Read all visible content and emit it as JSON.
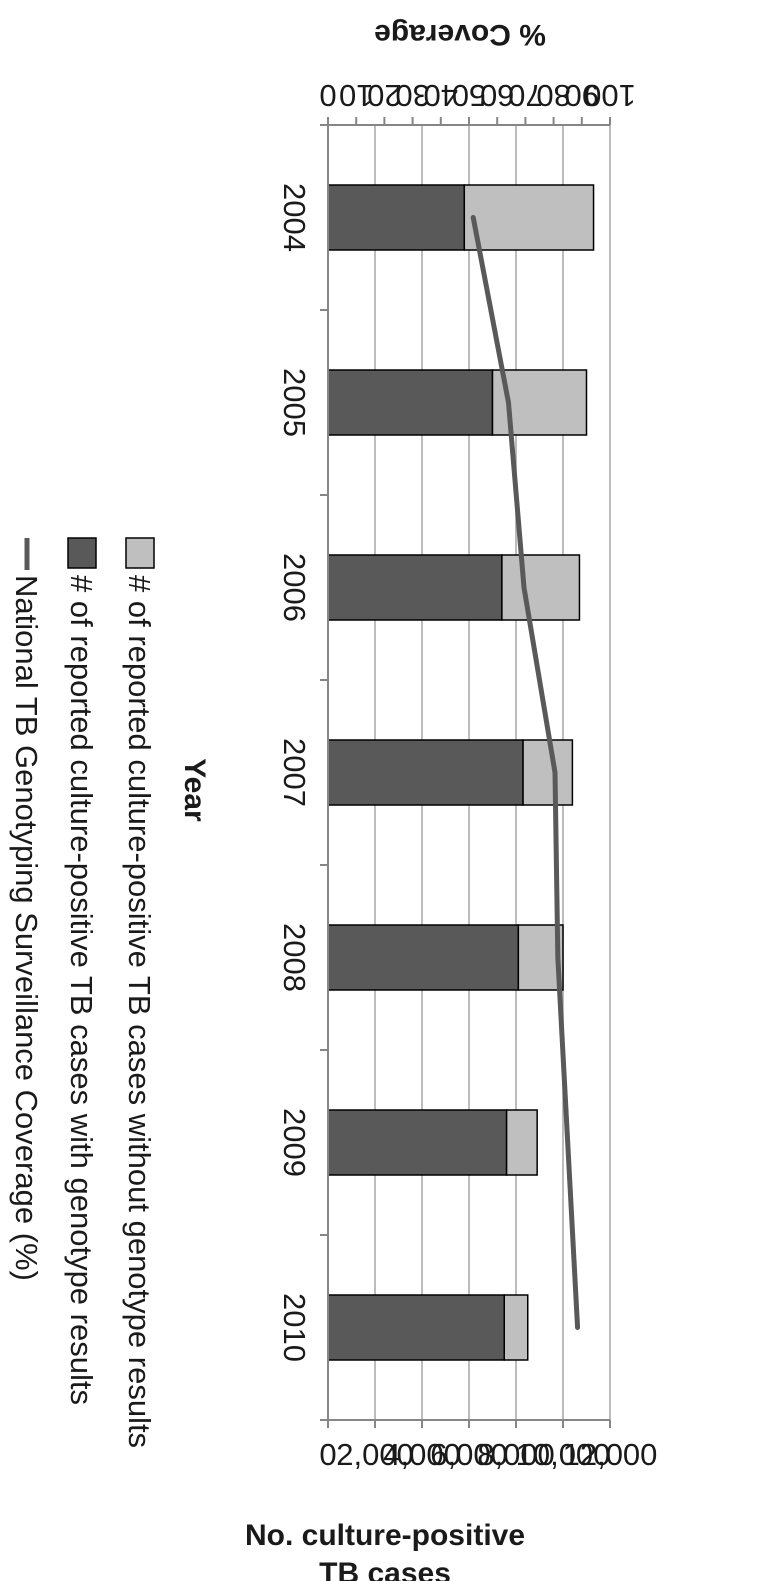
{
  "chart_data": {
    "type": "bar",
    "orientation": "rotated-90-clockwise",
    "categories": [
      "2004",
      "2005",
      "2006",
      "2007",
      "2008",
      "2009",
      "2010"
    ],
    "series": [
      {
        "name": "# of reported culture-positive TB cases with genotype results",
        "type": "bar",
        "stack": "cases",
        "axis": "left",
        "color": "#595959",
        "values": [
          5800,
          7000,
          7400,
          8300,
          8100,
          7600,
          7500
        ]
      },
      {
        "name": "# of reported culture-positive TB cases without genotype results",
        "type": "bar",
        "stack": "cases",
        "axis": "left",
        "color": "#bfbfbf",
        "values": [
          5500,
          4000,
          3300,
          2100,
          1900,
          1300,
          1000
        ]
      },
      {
        "name": "National TB Genotyping Surveillance Coverage (%)",
        "type": "line",
        "axis": "right",
        "color": "#595959",
        "values": [
          51.5,
          64,
          69.5,
          80.5,
          81.5,
          85,
          88.5
        ]
      }
    ],
    "xlabel": "Year",
    "ylabel_left": "No. culture-positive TB cases",
    "ylabel_right": "% Coverage",
    "ylim_left": [
      0,
      12000
    ],
    "ylim_right": [
      0,
      100
    ],
    "yticks_left": [
      "0",
      "2,000",
      "4,000",
      "6,000",
      "8,000",
      "10,000",
      "12,000"
    ],
    "yticks_right": [
      "0",
      "10",
      "20",
      "30",
      "40",
      "50",
      "60",
      "70",
      "80",
      "90",
      "100"
    ],
    "grid": true,
    "legend_position": "bottom"
  }
}
